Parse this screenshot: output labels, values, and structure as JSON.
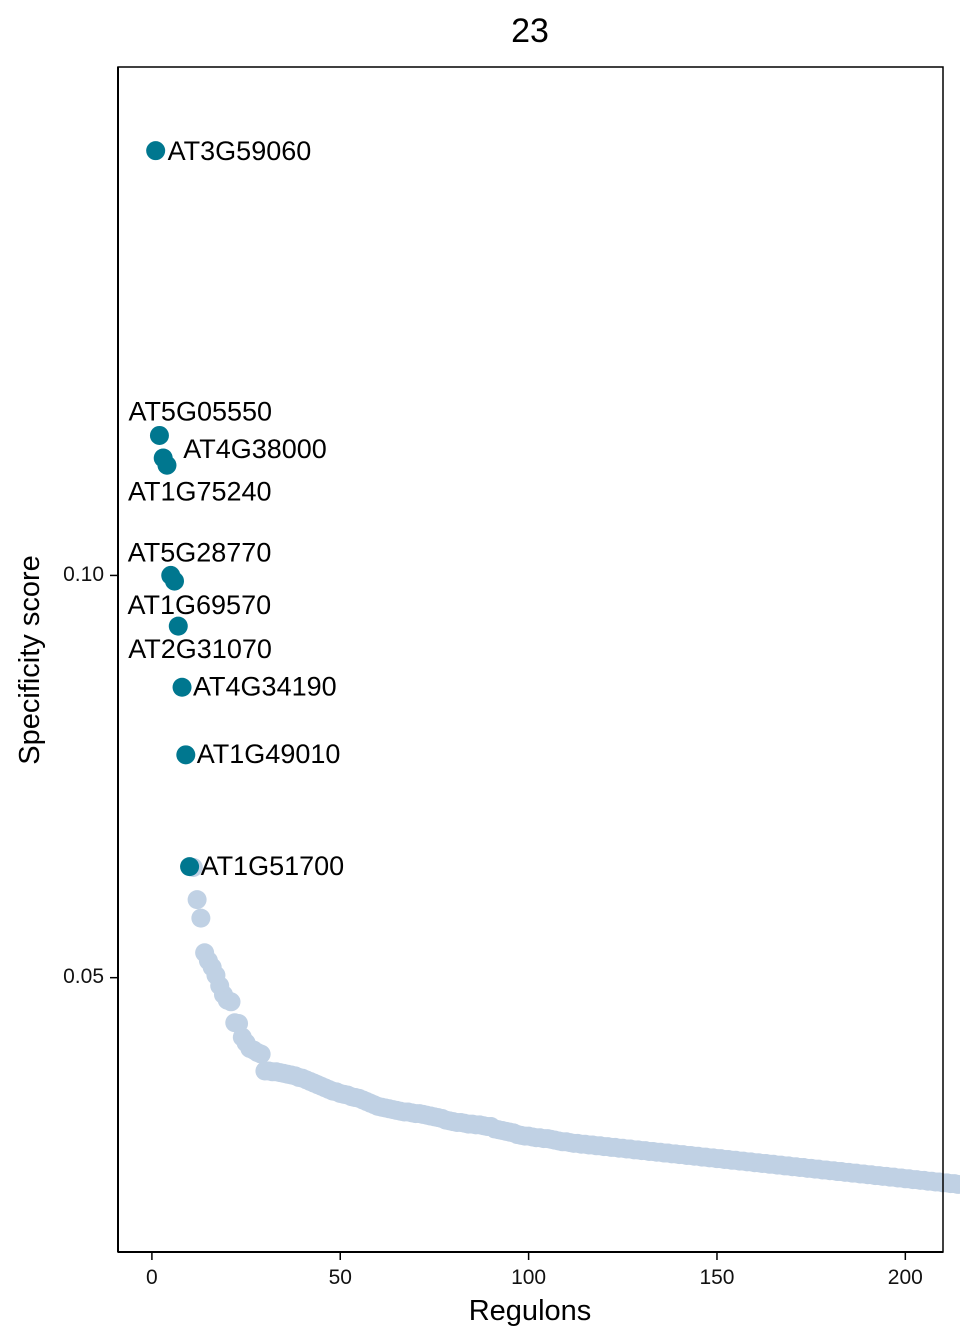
{
  "chart_data": {
    "type": "scatter",
    "title": "23",
    "xlabel": "Regulons",
    "ylabel": "Specificity score",
    "xlim": [
      -9,
      210
    ],
    "ylim": [
      0.0159,
      0.1632
    ],
    "x_ticks": [
      0,
      50,
      100,
      150,
      200
    ],
    "x_tick_labels": [
      "0",
      "50",
      "100",
      "150",
      "200"
    ],
    "y_ticks": [
      0.05,
      0.1
    ],
    "y_tick_labels": [
      "0.05",
      "0.10"
    ],
    "grid": false,
    "colors": {
      "highlight": "#00778f",
      "background_points": "#c0d1e4"
    },
    "highlighted": [
      {
        "label": "AT3G59060",
        "x": 1,
        "y": 0.1528
      },
      {
        "label": "AT5G05550",
        "x": 2,
        "y": 0.1174
      },
      {
        "label": "AT4G38000",
        "x": 3,
        "y": 0.1146
      },
      {
        "label": "AT1G75240",
        "x": 4,
        "y": 0.1137
      },
      {
        "label": "AT5G28770",
        "x": 5,
        "y": 0.1
      },
      {
        "label": "AT1G69570",
        "x": 6,
        "y": 0.0993
      },
      {
        "label": "AT2G31070",
        "x": 7,
        "y": 0.0937
      },
      {
        "label": "AT4G34190",
        "x": 8,
        "y": 0.0861
      },
      {
        "label": "AT1G49010",
        "x": 9,
        "y": 0.0777
      },
      {
        "label": "AT1G51700",
        "x": 10,
        "y": 0.0638
      }
    ],
    "other_points": {
      "x_start": 11,
      "y": [
        0.0637,
        0.0597,
        0.0574,
        0.0531,
        0.0521,
        0.0513,
        0.0503,
        0.049,
        0.0479,
        0.0472,
        0.047,
        0.0444,
        0.0443,
        0.0426,
        0.0419,
        0.0412,
        0.041,
        0.0407,
        0.0405,
        0.0384,
        0.0384,
        0.0383,
        0.0383,
        0.0382,
        0.0381,
        0.038,
        0.0379,
        0.0378,
        0.0376,
        0.0375,
        0.0373,
        0.0371,
        0.0369,
        0.0367,
        0.0365,
        0.0363,
        0.0361,
        0.0359,
        0.0358,
        0.0356,
        0.0355,
        0.0354,
        0.0352,
        0.0351,
        0.035,
        0.0348,
        0.0346,
        0.0344,
        0.0342,
        0.034,
        0.0339,
        0.0338,
        0.0337,
        0.0336,
        0.0335,
        0.0334,
        0.0333,
        0.0333,
        0.0332,
        0.0331,
        0.0331,
        0.033,
        0.0329,
        0.0328,
        0.0327,
        0.0326,
        0.0325,
        0.0323,
        0.0322,
        0.0321,
        0.032,
        0.032,
        0.0319,
        0.0318,
        0.0318,
        0.0317,
        0.0317,
        0.0316,
        0.0315,
        0.0315,
        0.0312,
        0.0311,
        0.031,
        0.0309,
        0.0308,
        0.0307,
        0.0305,
        0.0304,
        0.0303,
        0.0303,
        0.0302,
        0.0301,
        0.0301,
        0.03,
        0.03,
        0.0299,
        0.0298,
        0.0297,
        0.0296,
        0.0296,
        0.0295,
        0.0294,
        0.0294,
        0.0293,
        0.0293,
        0.0292,
        0.0292,
        0.0291,
        0.0291,
        0.029,
        0.029,
        0.0289,
        0.0289,
        0.0288,
        0.0288,
        0.0287,
        0.0287,
        0.0286,
        0.0286,
        0.0285,
        0.0285,
        0.0284,
        0.0284,
        0.0283,
        0.0283,
        0.0282,
        0.0282,
        0.0281,
        0.0281,
        0.028,
        0.028,
        0.0279,
        0.0279,
        0.0278,
        0.0278,
        0.0277,
        0.0277,
        0.0276,
        0.0276,
        0.0275,
        0.0275,
        0.0274,
        0.0274,
        0.0273,
        0.0273,
        0.0272,
        0.0272,
        0.0271,
        0.0271,
        0.027,
        0.027,
        0.0269,
        0.0269,
        0.0268,
        0.0268,
        0.0267,
        0.0267,
        0.0266,
        0.0266,
        0.0265,
        0.0265,
        0.0264,
        0.0264,
        0.0263,
        0.0263,
        0.0262,
        0.0262,
        0.0261,
        0.0261,
        0.026,
        0.026,
        0.0259,
        0.0259,
        0.0258,
        0.0258,
        0.0257,
        0.0257,
        0.0256,
        0.0256,
        0.0255,
        0.0255,
        0.0254,
        0.0254,
        0.0253,
        0.0253,
        0.0252,
        0.0252,
        0.0251,
        0.0251,
        0.025,
        0.025,
        0.0249,
        0.0249,
        0.0248,
        0.0248,
        0.0247,
        0.0247,
        0.0246,
        0.0246,
        0.0245,
        0.0245,
        0.0244,
        0.0244,
        0.0243
      ]
    }
  }
}
